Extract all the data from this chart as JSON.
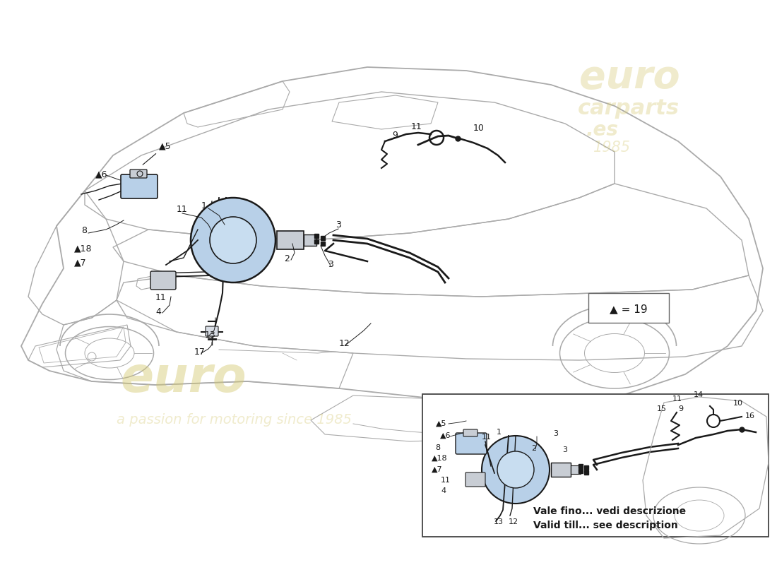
{
  "background_color": "#ffffff",
  "car_color": "#aaaaaa",
  "car_color_light": "#bbbbbb",
  "parts_color": "#1a1a1a",
  "blue_fill": "#b8d0e8",
  "blue_fill2": "#c8ddf0",
  "grey_fill": "#c8cdd4",
  "legend_text": "▲ = 19",
  "inset_note_line1": "Vale fino... vedi descrizione",
  "inset_note_line2": "Valid till... see description",
  "wm_color": "#d4c870",
  "wm_alpha": 0.4
}
